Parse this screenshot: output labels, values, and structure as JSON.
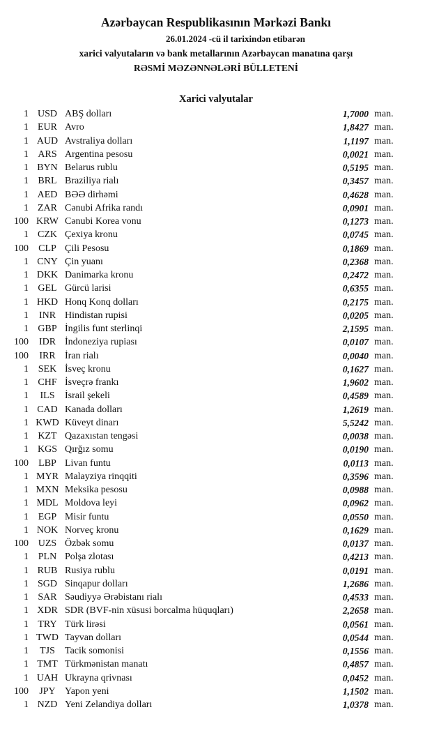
{
  "header": {
    "title": "Azərbaycan Respublikasının Mərkəzi Bankı",
    "dateline": "26.01.2024  -cü il tarixindən etibarən",
    "subtitle": "xarici valyutaların və bank metallarının Azərbaycan manatına qarşı",
    "bulletin": "RƏSMİ MƏZƏNNƏLƏRİ BÜLLETENİ"
  },
  "section_title": "Xarici valyutalar",
  "unit_label": "man.",
  "rates": [
    {
      "amount": "1",
      "code": "USD",
      "name": "ABŞ dolları",
      "rate": "1,7000"
    },
    {
      "amount": "1",
      "code": "EUR",
      "name": "Avro",
      "rate": "1,8427"
    },
    {
      "amount": "1",
      "code": "AUD",
      "name": "Avstraliya dolları",
      "rate": "1,1197"
    },
    {
      "amount": "1",
      "code": "ARS",
      "name": "Argentina pesosu",
      "rate": "0,0021"
    },
    {
      "amount": "1",
      "code": "BYN",
      "name": "Belarus rublu",
      "rate": "0,5195"
    },
    {
      "amount": "1",
      "code": "BRL",
      "name": "Braziliya rialı",
      "rate": "0,3457"
    },
    {
      "amount": "1",
      "code": "AED",
      "name": "BƏƏ dirhəmi",
      "rate": "0,4628"
    },
    {
      "amount": "1",
      "code": "ZAR",
      "name": "Cənubi Afrika randı",
      "rate": "0,0901"
    },
    {
      "amount": "100",
      "code": "KRW",
      "name": "Cənubi Korea vonu",
      "rate": "0,1273"
    },
    {
      "amount": "1",
      "code": "CZK",
      "name": "Çexiya kronu",
      "rate": "0,0745"
    },
    {
      "amount": "100",
      "code": "CLP",
      "name": "Çili Pesosu",
      "rate": "0,1869"
    },
    {
      "amount": "1",
      "code": "CNY",
      "name": "Çin yuanı",
      "rate": "0,2368"
    },
    {
      "amount": "1",
      "code": "DKK",
      "name": "Danimarka kronu",
      "rate": "0,2472"
    },
    {
      "amount": "1",
      "code": "GEL",
      "name": "Gürcü larisi",
      "rate": "0,6355"
    },
    {
      "amount": "1",
      "code": "HKD",
      "name": "Honq Konq dolları",
      "rate": "0,2175"
    },
    {
      "amount": "1",
      "code": "INR",
      "name": "Hindistan rupisi",
      "rate": "0,0205"
    },
    {
      "amount": "1",
      "code": "GBP",
      "name": "İngilis funt sterlinqi",
      "rate": "2,1595"
    },
    {
      "amount": "100",
      "code": "IDR",
      "name": "İndoneziya rupiası",
      "rate": "0,0107"
    },
    {
      "amount": "100",
      "code": "IRR",
      "name": "İran rialı",
      "rate": "0,0040"
    },
    {
      "amount": "1",
      "code": "SEK",
      "name": "İsveç kronu",
      "rate": "0,1627"
    },
    {
      "amount": "1",
      "code": "CHF",
      "name": "İsveçrə frankı",
      "rate": "1,9602"
    },
    {
      "amount": "1",
      "code": "ILS",
      "name": "İsrail şekeli",
      "rate": "0,4589"
    },
    {
      "amount": "1",
      "code": "CAD",
      "name": "Kanada dolları",
      "rate": "1,2619"
    },
    {
      "amount": "1",
      "code": "KWD",
      "name": "Küveyt dinarı",
      "rate": "5,5242"
    },
    {
      "amount": "1",
      "code": "KZT",
      "name": "Qazaxıstan tengəsi",
      "rate": "0,0038"
    },
    {
      "amount": "1",
      "code": "KGS",
      "name": "Qırğız somu",
      "rate": "0,0190"
    },
    {
      "amount": "100",
      "code": "LBP",
      "name": "Livan funtu",
      "rate": "0,0113"
    },
    {
      "amount": "1",
      "code": "MYR",
      "name": "Malayziya rinqqiti",
      "rate": "0,3596"
    },
    {
      "amount": "1",
      "code": "MXN",
      "name": "Meksika pesosu",
      "rate": "0,0988"
    },
    {
      "amount": "1",
      "code": "MDL",
      "name": "Moldova leyi",
      "rate": "0,0962"
    },
    {
      "amount": "1",
      "code": "EGP",
      "name": "Misir funtu",
      "rate": "0,0550"
    },
    {
      "amount": "1",
      "code": "NOK",
      "name": "Norveç kronu",
      "rate": "0,1629"
    },
    {
      "amount": "100",
      "code": "UZS",
      "name": "Özbək somu",
      "rate": "0,0137"
    },
    {
      "amount": "1",
      "code": "PLN",
      "name": "Polşa zlotası",
      "rate": "0,4213"
    },
    {
      "amount": "1",
      "code": "RUB",
      "name": "Rusiya rublu",
      "rate": "0,0191"
    },
    {
      "amount": "1",
      "code": "SGD",
      "name": "Sinqapur dolları",
      "rate": "1,2686"
    },
    {
      "amount": "1",
      "code": "SAR",
      "name": "Səudiyyə Ərəbistanı rialı",
      "rate": "0,4533"
    },
    {
      "amount": "1",
      "code": "XDR",
      "name": "SDR (BVF-nin xüsusi borcalma hüquqları)",
      "rate": "2,2658"
    },
    {
      "amount": "1",
      "code": "TRY",
      "name": "Türk lirəsi",
      "rate": "0,0561"
    },
    {
      "amount": "1",
      "code": "TWD",
      "name": "Tayvan dolları",
      "rate": "0,0544"
    },
    {
      "amount": "1",
      "code": "TJS",
      "name": "Tacik somonisi",
      "rate": "0,1556"
    },
    {
      "amount": "1",
      "code": "TMT",
      "name": "Türkmənistan manatı",
      "rate": "0,4857"
    },
    {
      "amount": "1",
      "code": "UAH",
      "name": "Ukrayna qrivnası",
      "rate": "0,0452"
    },
    {
      "amount": "100",
      "code": "JPY",
      "name": "Yapon yeni",
      "rate": "1,1502"
    },
    {
      "amount": "1",
      "code": "NZD",
      "name": "Yeni Zelandiya dolları",
      "rate": "1,0378"
    }
  ]
}
